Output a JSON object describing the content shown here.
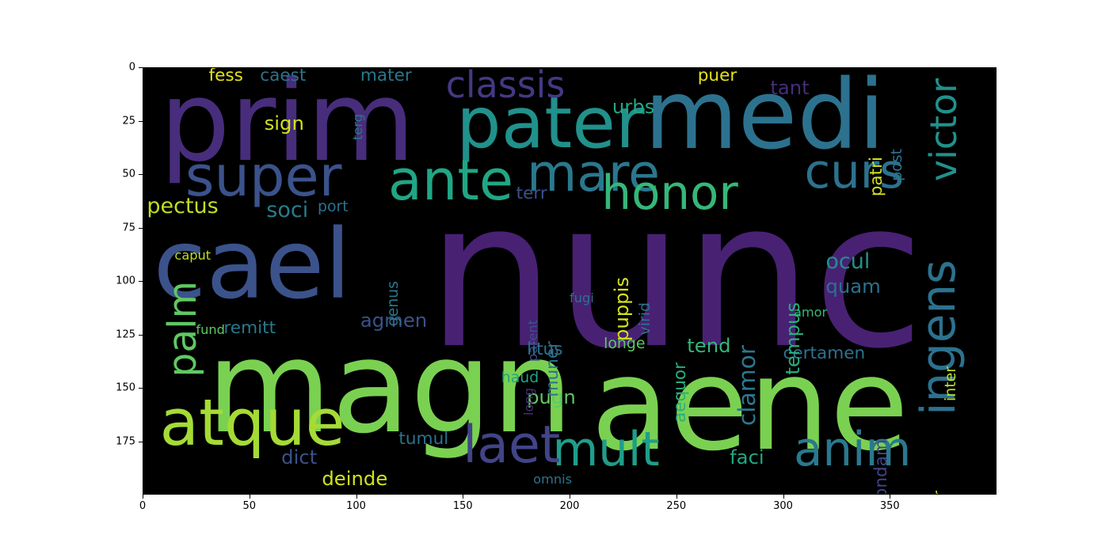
{
  "chart_data": {
    "type": "image",
    "title": "",
    "xlabel": "",
    "ylabel": "",
    "xlim": [
      0,
      400
    ],
    "ylim": [
      200,
      0
    ],
    "x_ticks": [
      "0",
      "50",
      "100",
      "150",
      "200",
      "250",
      "300",
      "350"
    ],
    "y_ticks": [
      "0",
      "25",
      "50",
      "75",
      "100",
      "125",
      "150",
      "175"
    ],
    "background": "#000000",
    "words": [
      {
        "text": "nunc",
        "x": 133,
        "y": 50,
        "size": 95,
        "color": "#482173"
      },
      {
        "text": "magn",
        "x": 30,
        "y": 120,
        "size": 60,
        "color": "#7ad151"
      },
      {
        "text": "aene",
        "x": 210,
        "y": 128,
        "size": 60,
        "color": "#7ad151"
      },
      {
        "text": "prim",
        "x": 8,
        "y": 0,
        "size": 52,
        "color": "#472d7b"
      },
      {
        "text": "cael",
        "x": 5,
        "y": 70,
        "size": 45,
        "color": "#3b528b"
      },
      {
        "text": "medi",
        "x": 235,
        "y": 0,
        "size": 45,
        "color": "#2c728e"
      },
      {
        "text": "pater",
        "x": 147,
        "y": 10,
        "size": 33,
        "color": "#21918c"
      },
      {
        "text": "atque",
        "x": 8,
        "y": 152,
        "size": 30,
        "color": "#a5db36"
      },
      {
        "text": "super",
        "x": 20,
        "y": 38,
        "size": 26,
        "color": "#3b528b"
      },
      {
        "text": "ante",
        "x": 115,
        "y": 40,
        "size": 26,
        "color": "#21a685"
      },
      {
        "text": "mare",
        "x": 180,
        "y": 38,
        "size": 24,
        "color": "#2a788e"
      },
      {
        "text": "honor",
        "x": 215,
        "y": 48,
        "size": 22,
        "color": "#35b779"
      },
      {
        "text": "curs",
        "x": 310,
        "y": 38,
        "size": 22,
        "color": "#2c728e"
      },
      {
        "text": "mult",
        "x": 192,
        "y": 168,
        "size": 22,
        "color": "#1f9e89"
      },
      {
        "text": "anim",
        "x": 305,
        "y": 168,
        "size": 22,
        "color": "#2a788e"
      },
      {
        "text": "laet",
        "x": 150,
        "y": 165,
        "size": 24,
        "color": "#414487"
      },
      {
        "text": "victor",
        "x": 367,
        "y": 5,
        "size": 17,
        "color": "#21918c",
        "rotate": -90
      },
      {
        "text": "ingens",
        "x": 362,
        "y": 90,
        "size": 22,
        "color": "#2c728e",
        "rotate": -90
      },
      {
        "text": "palm",
        "x": 10,
        "y": 100,
        "size": 18,
        "color": "#5ec962",
        "rotate": -90
      },
      {
        "text": "classis",
        "x": 142,
        "y": 0,
        "size": 17,
        "color": "#443983"
      },
      {
        "text": "pectus",
        "x": 2,
        "y": 60,
        "size": 10,
        "color": "#bddf26"
      },
      {
        "text": "soci",
        "x": 58,
        "y": 62,
        "size": 10,
        "color": "#287c8e"
      },
      {
        "text": "sign",
        "x": 57,
        "y": 22,
        "size": 9,
        "color": "#d2e21b"
      },
      {
        "text": "fess",
        "x": 31,
        "y": 0,
        "size": 8,
        "color": "#e5e419"
      },
      {
        "text": "caest",
        "x": 55,
        "y": 0,
        "size": 8,
        "color": "#2c728e"
      },
      {
        "text": "mater",
        "x": 102,
        "y": 0,
        "size": 8,
        "color": "#2a788e"
      },
      {
        "text": "urbs",
        "x": 220,
        "y": 14,
        "size": 9,
        "color": "#22a884"
      },
      {
        "text": "puer",
        "x": 260,
        "y": 0,
        "size": 8,
        "color": "#e5e419"
      },
      {
        "text": "tant",
        "x": 294,
        "y": 5,
        "size": 9,
        "color": "#472d7b"
      },
      {
        "text": "terr",
        "x": 175,
        "y": 55,
        "size": 8,
        "color": "#3b528b"
      },
      {
        "text": "port",
        "x": 82,
        "y": 62,
        "size": 7,
        "color": "#2c728e"
      },
      {
        "text": "remitt",
        "x": 38,
        "y": 118,
        "size": 8,
        "color": "#2a788e"
      },
      {
        "text": "agmen",
        "x": 102,
        "y": 114,
        "size": 9,
        "color": "#3b528b"
      },
      {
        "text": "certamen",
        "x": 300,
        "y": 130,
        "size": 8,
        "color": "#2c728e"
      },
      {
        "text": "litus",
        "x": 180,
        "y": 128,
        "size": 8,
        "color": "#2c728e"
      },
      {
        "text": "longe",
        "x": 216,
        "y": 126,
        "size": 7,
        "color": "#5ec962"
      },
      {
        "text": "tend",
        "x": 255,
        "y": 126,
        "size": 9,
        "color": "#35b779"
      },
      {
        "text": "pugn",
        "x": 180,
        "y": 150,
        "size": 9,
        "color": "#5ec962"
      },
      {
        "text": "haud",
        "x": 168,
        "y": 142,
        "size": 7,
        "color": "#20a386"
      },
      {
        "text": "tumul",
        "x": 120,
        "y": 170,
        "size": 8,
        "color": "#2c728e"
      },
      {
        "text": "dict",
        "x": 65,
        "y": 178,
        "size": 9,
        "color": "#3b528b"
      },
      {
        "text": "deinde",
        "x": 84,
        "y": 188,
        "size": 9,
        "color": "#d2e21b"
      },
      {
        "text": "faci",
        "x": 275,
        "y": 178,
        "size": 9,
        "color": "#22a884"
      },
      {
        "text": "quam",
        "x": 320,
        "y": 98,
        "size": 9,
        "color": "#2c728e"
      },
      {
        "text": "ocul",
        "x": 320,
        "y": 86,
        "size": 10,
        "color": "#21918c"
      },
      {
        "text": "clamor",
        "x": 278,
        "y": 130,
        "size": 11,
        "color": "#2a788e",
        "rotate": -90
      },
      {
        "text": "tempus",
        "x": 300,
        "y": 110,
        "size": 9,
        "color": "#29af7f",
        "rotate": -90
      },
      {
        "text": "aequor",
        "x": 248,
        "y": 138,
        "size": 8,
        "color": "#29af7f",
        "rotate": -90
      },
      {
        "text": "puppis",
        "x": 220,
        "y": 98,
        "size": 9,
        "color": "#d2e21b",
        "rotate": -90
      },
      {
        "text": "muner",
        "x": 188,
        "y": 128,
        "size": 8,
        "color": "#2c728e",
        "rotate": -90
      },
      {
        "text": "genus",
        "x": 114,
        "y": 100,
        "size": 7,
        "color": "#2a788e",
        "rotate": -90
      },
      {
        "text": "quondam",
        "x": 342,
        "y": 174,
        "size": 8,
        "color": "#414487",
        "rotate": -90
      },
      {
        "text": "senior",
        "x": 370,
        "y": 198,
        "size": 7,
        "color": "#d2e21b",
        "rotate": -90
      },
      {
        "text": "patri",
        "x": 340,
        "y": 42,
        "size": 8,
        "color": "#d2e21b",
        "rotate": -90
      },
      {
        "text": "post",
        "x": 350,
        "y": 38,
        "size": 7,
        "color": "#2c728e",
        "rotate": -90
      },
      {
        "text": "inter",
        "x": 375,
        "y": 140,
        "size": 7,
        "color": "#bddf26",
        "rotate": -90
      },
      {
        "text": "terg",
        "x": 98,
        "y": 22,
        "size": 6,
        "color": "#2a788e",
        "rotate": -90
      },
      {
        "text": "virid",
        "x": 232,
        "y": 110,
        "size": 7,
        "color": "#2c728e",
        "rotate": -90
      },
      {
        "text": "parent",
        "x": 180,
        "y": 118,
        "size": 6,
        "color": "#3b528b",
        "rotate": -90
      },
      {
        "text": "long",
        "x": 178,
        "y": 150,
        "size": 6,
        "color": "#472d7b",
        "rotate": -90
      },
      {
        "text": "caput",
        "x": 15,
        "y": 85,
        "size": 6,
        "color": "#bddf26"
      },
      {
        "text": "fund",
        "x": 25,
        "y": 120,
        "size": 6,
        "color": "#5ec962"
      },
      {
        "text": "amor",
        "x": 305,
        "y": 112,
        "size": 6,
        "color": "#35b779"
      },
      {
        "text": "fugi",
        "x": 200,
        "y": 105,
        "size": 6,
        "color": "#2c728e"
      },
      {
        "text": "omnis",
        "x": 183,
        "y": 190,
        "size": 6,
        "color": "#2c728e"
      },
      {
        "text": "mater",
        "x": 102,
        "y": 0,
        "size": 8,
        "color": "#2a788e"
      }
    ]
  }
}
